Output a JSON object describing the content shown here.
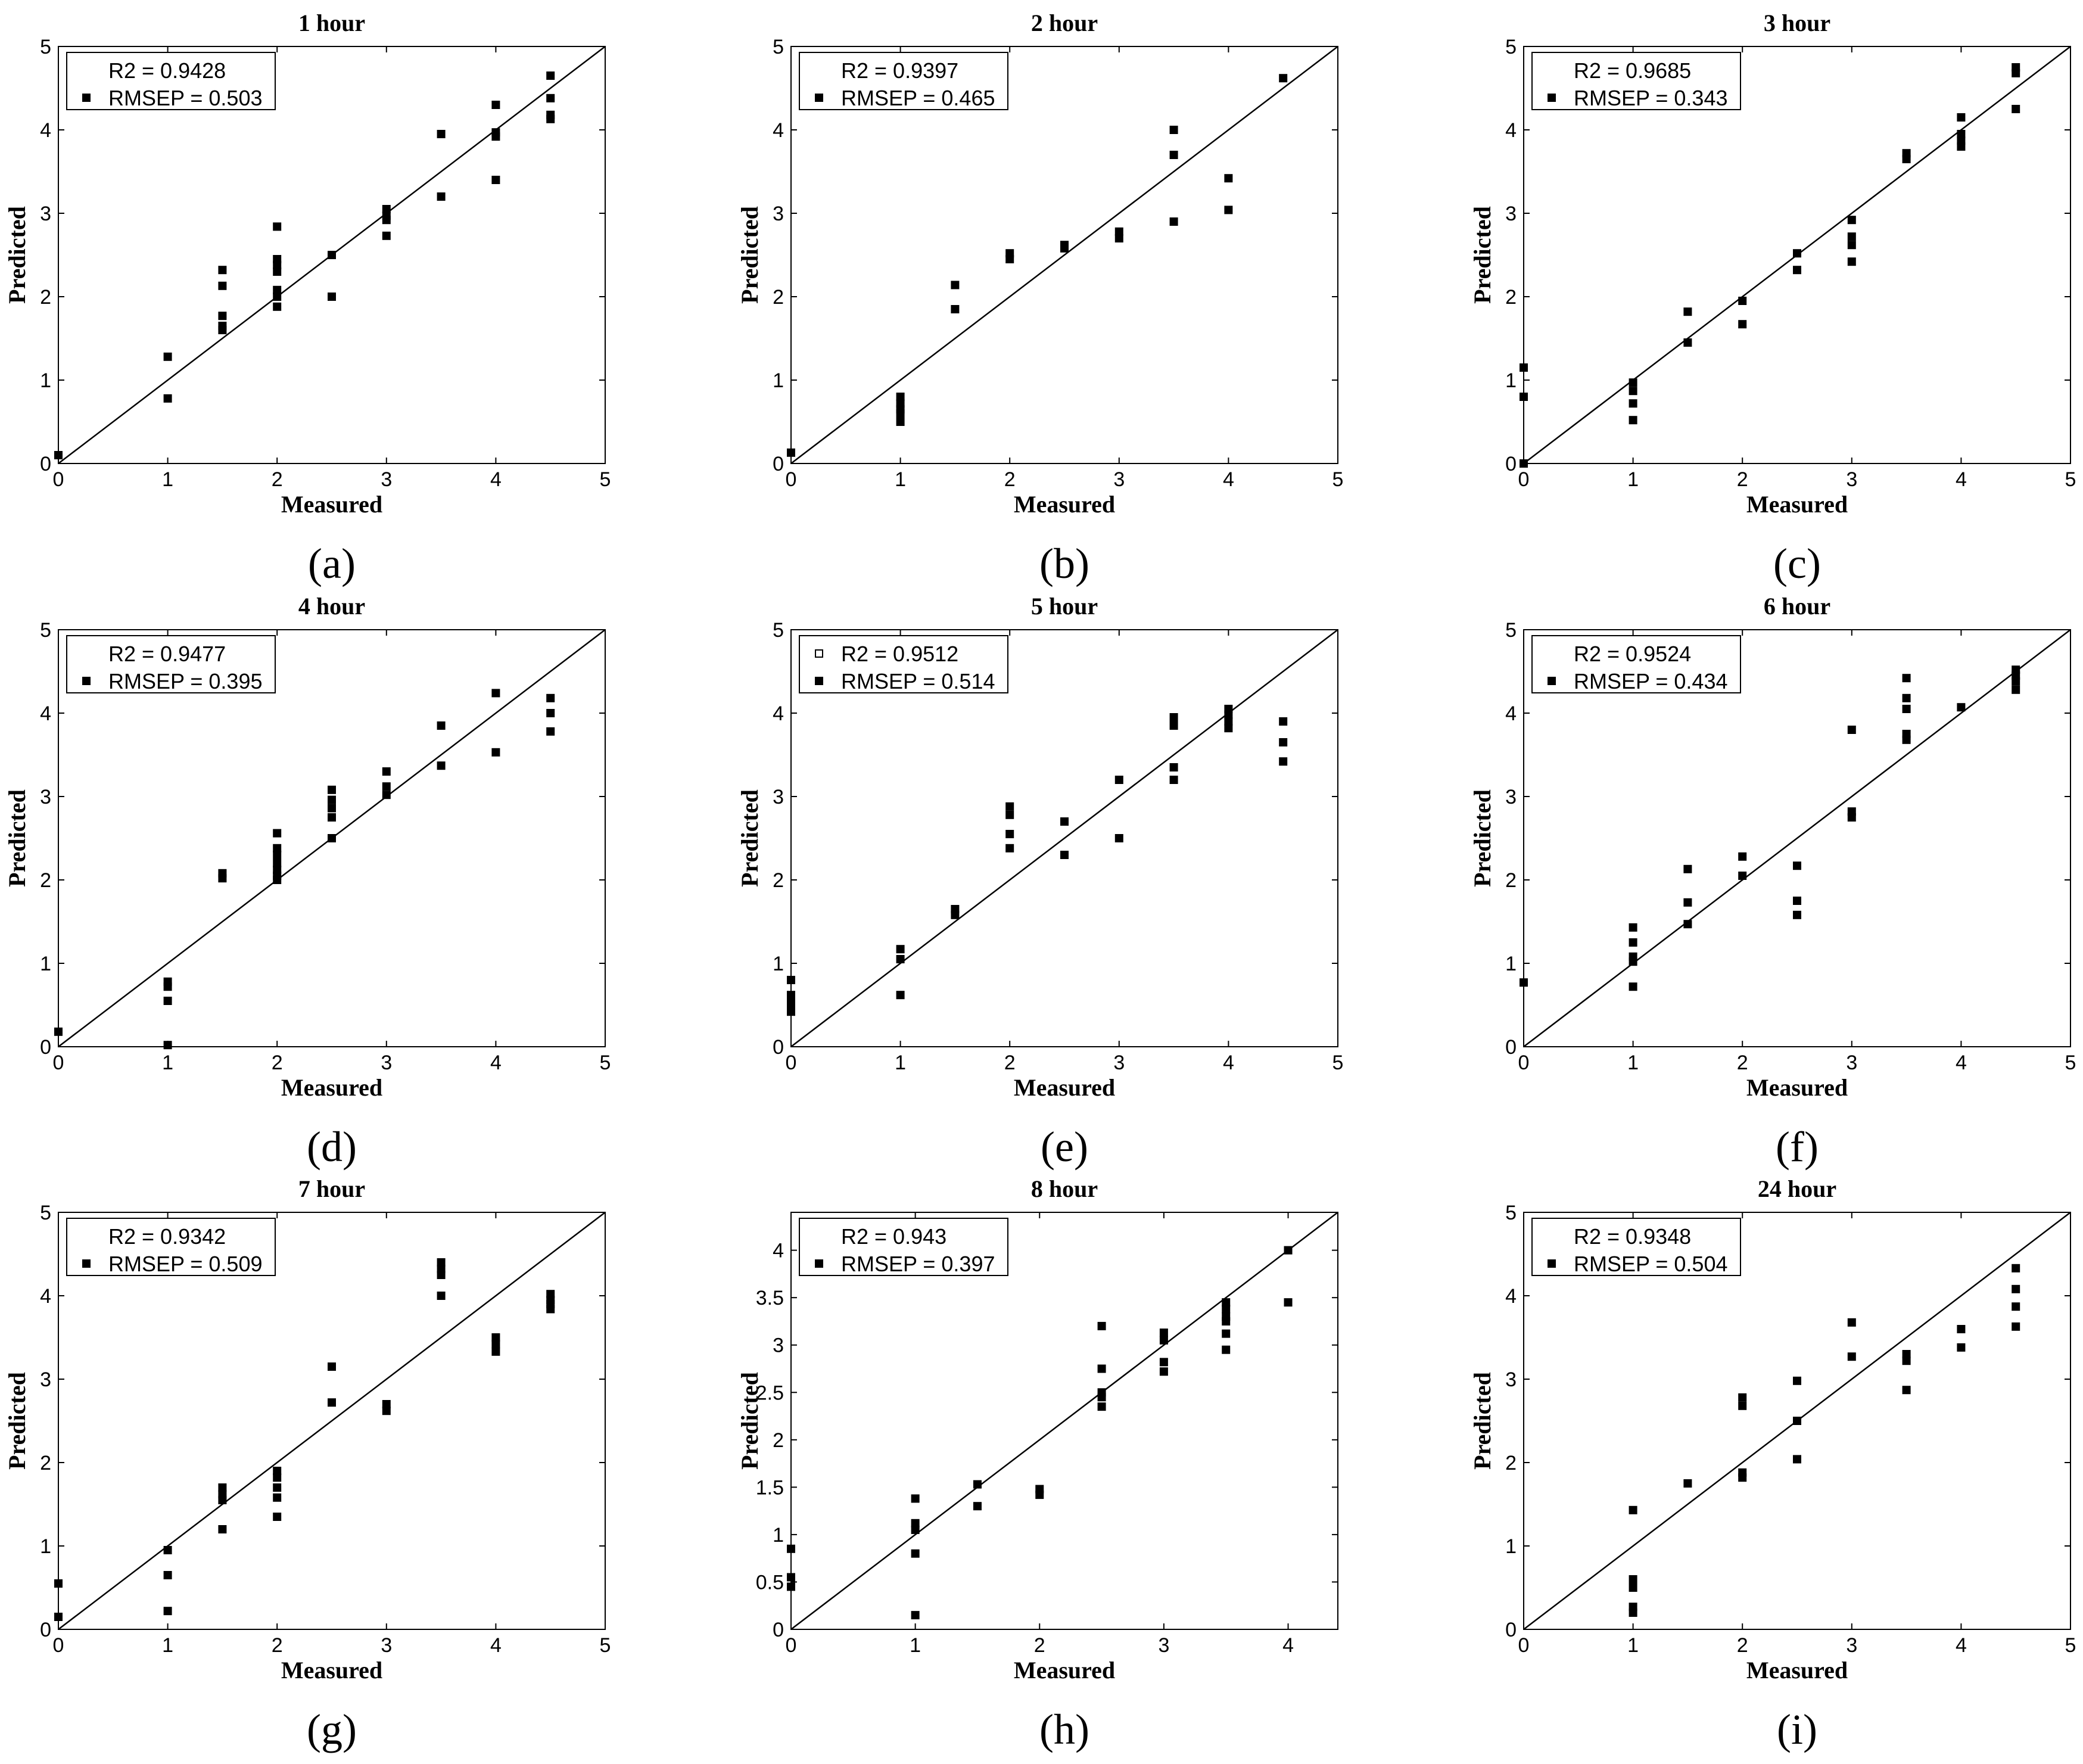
{
  "chart_data": [
    {
      "type": "scatter",
      "title": "1 hour",
      "xlabel": "Measured",
      "ylabel": "Predicted",
      "panel_label": "(a)",
      "xlim": [
        0,
        5
      ],
      "ylim": [
        0,
        5
      ],
      "xticks": [
        0,
        1,
        2,
        3,
        4,
        5
      ],
      "yticks": [
        0,
        1,
        2,
        3,
        4,
        5
      ],
      "xtick_labels": [
        "0",
        "1",
        "2",
        "3",
        "4",
        "5"
      ],
      "ytick_labels": [
        "0",
        "1",
        "2",
        "3",
        "4",
        "5"
      ],
      "legend": [
        "R2 = 0.9428",
        "RMSEP = 0.503"
      ],
      "legend_markers": [
        "none",
        "filled"
      ],
      "reference_line": "y = x",
      "x": [
        0,
        1,
        1,
        1.5,
        1.5,
        1.5,
        1.5,
        1.5,
        2,
        2,
        2,
        2,
        2,
        2,
        2,
        2.5,
        2.5,
        3,
        3,
        3,
        3,
        3.5,
        3.5,
        4,
        4,
        4,
        4,
        4.5,
        4.5,
        4.5,
        4.5
      ],
      "y": [
        0.1,
        1.28,
        0.78,
        2.32,
        2.13,
        1.77,
        1.6,
        1.65,
        2.84,
        2.45,
        2.38,
        2.3,
        2.08,
        1.88,
        2.0,
        2.5,
        2.0,
        3.05,
        2.97,
        2.92,
        2.73,
        3.95,
        3.2,
        4.3,
        3.97,
        3.92,
        3.4,
        4.65,
        4.38,
        4.18,
        4.13
      ]
    },
    {
      "type": "scatter",
      "title": "2 hour",
      "xlabel": "Measured",
      "ylabel": "Predicted",
      "panel_label": "(b)",
      "xlim": [
        0,
        5
      ],
      "ylim": [
        0,
        5
      ],
      "xticks": [
        0,
        1,
        2,
        3,
        4,
        5
      ],
      "yticks": [
        0,
        1,
        2,
        3,
        4,
        5
      ],
      "xtick_labels": [
        "0",
        "1",
        "2",
        "3",
        "4",
        "5"
      ],
      "ytick_labels": [
        "0",
        "1",
        "2",
        "3",
        "4",
        "5"
      ],
      "legend": [
        "R2 = 0.9397",
        "RMSEP = 0.465"
      ],
      "legend_markers": [
        "none",
        "filled"
      ],
      "reference_line": "y = x",
      "x": [
        0,
        1,
        1,
        1,
        1,
        1,
        1.5,
        1.5,
        2,
        2,
        2.5,
        2.5,
        3,
        3,
        3.5,
        3.5,
        3.5,
        4,
        4,
        4.5
      ],
      "y": [
        0.13,
        0.8,
        0.72,
        0.65,
        0.6,
        0.5,
        2.14,
        1.85,
        2.52,
        2.45,
        2.62,
        2.58,
        2.78,
        2.7,
        4.0,
        3.7,
        2.9,
        3.42,
        3.04,
        4.62
      ]
    },
    {
      "type": "scatter",
      "title": "3 hour",
      "xlabel": "Measured",
      "ylabel": "Predicted",
      "panel_label": "(c)",
      "xlim": [
        0,
        5
      ],
      "ylim": [
        0,
        5
      ],
      "xticks": [
        0,
        1,
        2,
        3,
        4,
        5
      ],
      "yticks": [
        0,
        1,
        2,
        3,
        4,
        5
      ],
      "xtick_labels": [
        "0",
        "1",
        "2",
        "3",
        "4",
        "5"
      ],
      "ytick_labels": [
        "0",
        "1",
        "2",
        "3",
        "4",
        "5"
      ],
      "legend": [
        "R2 = 0.9685",
        "RMSEP = 0.343"
      ],
      "legend_markers": [
        "none",
        "filled"
      ],
      "reference_line": "y = x",
      "x": [
        0,
        0,
        0,
        1,
        1,
        1,
        1,
        1.5,
        1.5,
        2,
        2,
        2.5,
        2.5,
        3,
        3,
        3,
        3,
        3.5,
        3.5,
        4,
        4,
        4,
        4,
        4.5,
        4.5,
        4.5
      ],
      "y": [
        1.15,
        0.8,
        0.0,
        0.97,
        0.87,
        0.72,
        0.52,
        1.82,
        1.45,
        1.95,
        1.67,
        2.52,
        2.32,
        2.92,
        2.72,
        2.62,
        2.42,
        3.72,
        3.65,
        4.15,
        3.95,
        3.87,
        3.8,
        4.75,
        4.68,
        4.25
      ]
    },
    {
      "type": "scatter",
      "title": "4 hour",
      "xlabel": "Measured",
      "ylabel": "Predicted",
      "panel_label": "(d)",
      "xlim": [
        0,
        5
      ],
      "ylim": [
        0,
        5
      ],
      "xticks": [
        0,
        1,
        2,
        3,
        4,
        5
      ],
      "yticks": [
        0,
        1,
        2,
        3,
        4,
        5
      ],
      "xtick_labels": [
        "0",
        "1",
        "2",
        "3",
        "4",
        "5"
      ],
      "ytick_labels": [
        "0",
        "1",
        "2",
        "3",
        "4",
        "5"
      ],
      "legend": [
        "R2 = 0.9477",
        "RMSEP = 0.395"
      ],
      "legend_markers": [
        "none",
        "filled"
      ],
      "reference_line": "y = x",
      "x": [
        0,
        1,
        1,
        1,
        1,
        1.5,
        1.5,
        2,
        2,
        2,
        2,
        2,
        2,
        2,
        2.5,
        2.5,
        2.5,
        2.5,
        2.5,
        3,
        3,
        3,
        3.5,
        3.5,
        4,
        4,
        4.5,
        4.5,
        4.5
      ],
      "y": [
        0.18,
        0.78,
        0.72,
        0.55,
        0.02,
        2.08,
        2.02,
        2.56,
        2.38,
        2.3,
        2.2,
        2.12,
        2.05,
        2.0,
        3.08,
        2.96,
        2.86,
        2.75,
        2.5,
        3.3,
        3.12,
        3.02,
        3.85,
        3.37,
        4.24,
        3.53,
        4.18,
        4.0,
        3.78
      ]
    },
    {
      "type": "scatter",
      "title": "5 hour",
      "xlabel": "Measured",
      "ylabel": "Predicted",
      "panel_label": "(e)",
      "xlim": [
        0,
        5
      ],
      "ylim": [
        0,
        5
      ],
      "xticks": [
        0,
        1,
        2,
        3,
        4,
        5
      ],
      "yticks": [
        0,
        1,
        2,
        3,
        4,
        5
      ],
      "xtick_labels": [
        "0",
        "1",
        "2",
        "3",
        "4",
        "5"
      ],
      "ytick_labels": [
        "0",
        "1",
        "2",
        "3",
        "4",
        "5"
      ],
      "legend": [
        "R2 = 0.9512",
        "RMSEP = 0.514"
      ],
      "legend_markers": [
        "open",
        "filled"
      ],
      "reference_line": "y = x",
      "x": [
        0,
        0,
        0,
        0,
        0,
        1,
        1,
        1,
        1.5,
        1.5,
        2,
        2,
        2,
        2,
        2.5,
        2.5,
        3,
        3,
        3.5,
        3.5,
        3.5,
        3.5,
        4,
        4,
        4,
        4,
        4.5,
        4.5,
        4.5
      ],
      "y": [
        0.8,
        0.62,
        0.55,
        0.48,
        0.42,
        1.17,
        1.05,
        0.62,
        1.65,
        1.58,
        2.88,
        2.78,
        2.55,
        2.38,
        2.7,
        2.3,
        3.2,
        2.5,
        3.95,
        3.85,
        3.35,
        3.2,
        4.05,
        3.98,
        3.9,
        3.82,
        3.9,
        3.65,
        3.42
      ]
    },
    {
      "type": "scatter",
      "title": "6 hour",
      "xlabel": "Measured",
      "ylabel": "Predicted",
      "panel_label": "(f)",
      "xlim": [
        0,
        5
      ],
      "ylim": [
        0,
        5
      ],
      "xticks": [
        0,
        1,
        2,
        3,
        4,
        5
      ],
      "yticks": [
        0,
        1,
        2,
        3,
        4,
        5
      ],
      "xtick_labels": [
        "0",
        "1",
        "2",
        "3",
        "4",
        "5"
      ],
      "ytick_labels": [
        "0",
        "1",
        "2",
        "3",
        "4",
        "5"
      ],
      "legend": [
        "R2 = 0.9524",
        "RMSEP = 0.434"
      ],
      "legend_markers": [
        "none",
        "filled"
      ],
      "reference_line": "y = x",
      "x": [
        0,
        1,
        1,
        1,
        1,
        1,
        1.5,
        1.5,
        1.5,
        2,
        2,
        2.5,
        2.5,
        2.5,
        3,
        3,
        3,
        3.5,
        3.5,
        3.5,
        3.5,
        3.5,
        4,
        4.5,
        4.5,
        4.5,
        4.5
      ],
      "y": [
        0.77,
        1.43,
        1.25,
        1.08,
        1.02,
        0.72,
        2.13,
        1.73,
        1.47,
        2.28,
        2.05,
        2.17,
        1.75,
        1.58,
        3.8,
        2.82,
        2.75,
        4.42,
        4.18,
        4.05,
        3.75,
        3.68,
        4.07,
        4.52,
        4.45,
        4.38,
        4.28
      ]
    },
    {
      "type": "scatter",
      "title": "7 hour",
      "xlabel": "Measured",
      "ylabel": "Predicted",
      "panel_label": "(g)",
      "xlim": [
        0,
        5
      ],
      "ylim": [
        0,
        5
      ],
      "xticks": [
        0,
        1,
        2,
        3,
        4,
        5
      ],
      "yticks": [
        0,
        1,
        2,
        3,
        4,
        5
      ],
      "xtick_labels": [
        "0",
        "1",
        "2",
        "3",
        "4",
        "5"
      ],
      "ytick_labels": [
        "0",
        "1",
        "2",
        "3",
        "4",
        "5"
      ],
      "legend": [
        "R2 = 0.9342",
        "RMSEP = 0.509"
      ],
      "legend_markers": [
        "none",
        "filled"
      ],
      "reference_line": "y = x",
      "x": [
        0,
        0,
        1,
        1,
        1,
        1.5,
        1.5,
        1.5,
        1.5,
        2,
        2,
        2,
        2,
        2,
        2.5,
        2.5,
        3,
        3,
        3.5,
        3.5,
        3.5,
        3.5,
        4,
        4,
        4,
        4.5,
        4.5,
        4.5,
        4.5
      ],
      "y": [
        0.55,
        0.15,
        0.95,
        0.65,
        0.22,
        1.7,
        1.62,
        1.55,
        1.2,
        1.9,
        1.82,
        1.7,
        1.58,
        1.35,
        3.15,
        2.72,
        2.7,
        2.62,
        4.4,
        4.32,
        4.25,
        4.0,
        3.5,
        3.42,
        3.33,
        4.02,
        3.95,
        3.9,
        3.84
      ]
    },
    {
      "type": "scatter",
      "title": "8 hour",
      "xlabel": "Measured",
      "ylabel": "Predicted",
      "panel_label": "(h)",
      "xlim": [
        0,
        4.4
      ],
      "ylim": [
        0,
        4.4
      ],
      "xticks": [
        0,
        1,
        2,
        3,
        4
      ],
      "yticks": [
        0,
        0.5,
        1,
        1.5,
        2,
        2.5,
        3,
        3.5,
        4
      ],
      "xtick_labels": [
        "0",
        "1",
        "2",
        "3",
        "4"
      ],
      "ytick_labels": [
        "0",
        "0.5",
        "1",
        "1.5",
        "2",
        "2.5",
        "3",
        "3.5",
        "4"
      ],
      "legend": [
        "R2 = 0.943",
        "RMSEP = 0.397"
      ],
      "legend_markers": [
        "none",
        "filled"
      ],
      "reference_line": "y = x",
      "x": [
        0,
        0,
        0,
        1,
        1,
        1,
        1,
        1,
        1.5,
        1.5,
        2,
        2,
        2.5,
        2.5,
        2.5,
        2.5,
        2.5,
        3,
        3,
        3,
        3,
        3.5,
        3.5,
        3.5,
        3.5,
        3.5,
        3.5,
        4,
        4
      ],
      "y": [
        0.85,
        0.55,
        0.45,
        1.38,
        1.12,
        1.05,
        0.8,
        0.15,
        1.53,
        1.3,
        1.48,
        1.42,
        3.2,
        2.75,
        2.5,
        2.45,
        2.35,
        3.13,
        3.05,
        2.82,
        2.72,
        3.45,
        3.38,
        3.3,
        3.25,
        3.12,
        2.95,
        4.0,
        3.45
      ]
    },
    {
      "type": "scatter",
      "title": "24 hour",
      "xlabel": "Measured",
      "ylabel": "Predicted",
      "panel_label": "(i)",
      "xlim": [
        0,
        5
      ],
      "ylim": [
        0,
        5
      ],
      "xticks": [
        0,
        1,
        2,
        3,
        4,
        5
      ],
      "yticks": [
        0,
        1,
        2,
        3,
        4,
        5
      ],
      "xtick_labels": [
        "0",
        "1",
        "2",
        "3",
        "4",
        "5"
      ],
      "ytick_labels": [
        "0",
        "1",
        "2",
        "3",
        "4",
        "5"
      ],
      "legend": [
        "R2 = 0.9348",
        "RMSEP = 0.504"
      ],
      "legend_markers": [
        "none",
        "filled"
      ],
      "reference_line": "y = x",
      "x": [
        1,
        1,
        1,
        1,
        1,
        1.5,
        2,
        2,
        2,
        2,
        2.5,
        2.5,
        2.5,
        3,
        3,
        3.5,
        3.5,
        3.5,
        4,
        4,
        4.5,
        4.5,
        4.5,
        4.5
      ],
      "y": [
        1.43,
        0.6,
        0.5,
        0.27,
        0.2,
        1.75,
        2.78,
        2.68,
        1.88,
        1.82,
        2.98,
        2.5,
        2.04,
        3.68,
        3.27,
        3.3,
        3.22,
        2.87,
        3.6,
        3.38,
        4.33,
        4.08,
        3.87,
        3.63
      ]
    }
  ]
}
